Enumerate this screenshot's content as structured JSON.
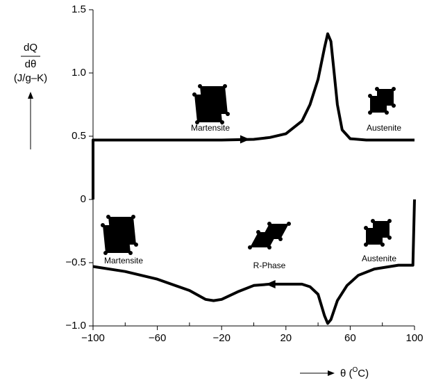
{
  "chart_data": {
    "type": "line",
    "ylabel_top": "dQ",
    "ylabel_bottom": "dθ",
    "ylabel_units": "(J/g–K)",
    "xlabel_start": "θ (",
    "xlabel_sup": "O",
    "xlabel_end": "C)",
    "annotations": [
      "Martensite",
      "Austenite",
      "Martensite",
      "R-Phase",
      "Austenite"
    ],
    "xlim": [
      -100,
      100
    ],
    "ylim": [
      -1.0,
      1.5
    ],
    "xticks": [
      {
        "value": -100,
        "label": "−100"
      },
      {
        "value": -60,
        "label": "−60"
      },
      {
        "value": -20,
        "label": "−20"
      },
      20,
      60,
      100
    ],
    "xminorticks": [
      -80,
      -40,
      0,
      40,
      80
    ],
    "yticks": [
      {
        "value": -1.0,
        "label": "−1.0"
      },
      {
        "value": -0.5,
        "label": "−0.5"
      },
      0,
      0.5,
      {
        "value": 1.0,
        "label": "1.0"
      },
      1.5
    ],
    "series": [
      {
        "color": "#000000",
        "x": [
          -100,
          -100,
          -80,
          -60,
          -40,
          -20,
          0,
          10,
          20,
          30,
          35,
          40,
          44,
          46,
          48,
          50,
          52,
          55,
          60,
          70,
          80,
          100
        ],
        "values": [
          0,
          0.47,
          0.47,
          0.47,
          0.47,
          0.47,
          0.475,
          0.49,
          0.52,
          0.62,
          0.75,
          0.95,
          1.2,
          1.31,
          1.25,
          1.0,
          0.75,
          0.55,
          0.48,
          0.47,
          0.47,
          0.47
        ]
      },
      {
        "color": "#000000",
        "x": [
          100,
          99,
          90,
          75,
          65,
          58,
          52,
          48,
          46,
          44,
          40,
          35,
          30,
          10,
          0,
          -10,
          -20,
          -25,
          -30,
          -40,
          -60,
          -80,
          -100
        ],
        "values": [
          0,
          -0.52,
          -0.52,
          -0.55,
          -0.6,
          -0.68,
          -0.8,
          -0.95,
          -0.98,
          -0.92,
          -0.75,
          -0.69,
          -0.67,
          -0.67,
          -0.68,
          -0.73,
          -0.79,
          -0.8,
          -0.79,
          -0.72,
          -0.63,
          -0.57,
          -0.53
        ]
      }
    ]
  }
}
